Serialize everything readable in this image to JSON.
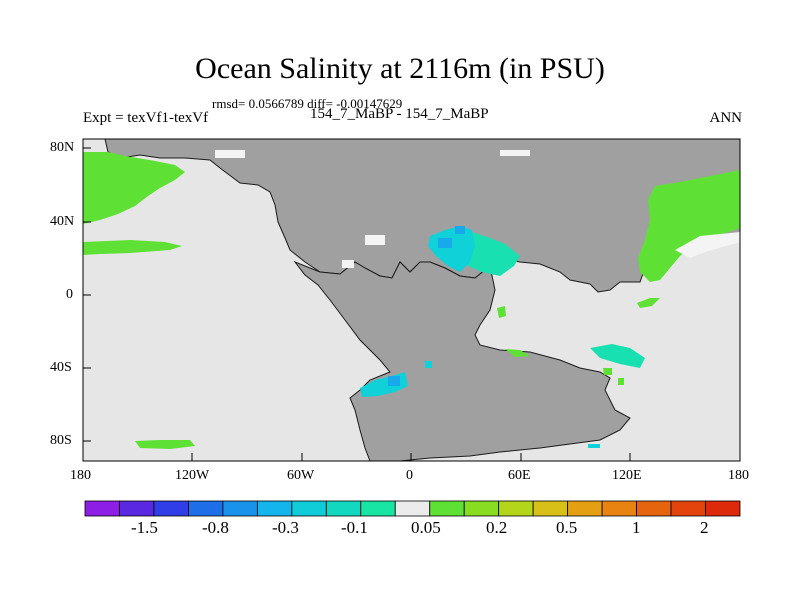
{
  "title": "Ocean Salinity at 2116m (in PSU)",
  "stats": "rmsd= 0.0566789 diff= -0.00147629",
  "experiment": "Expt = texVf1-texVf",
  "subtitle": "154_7_MaBP - 154_7_MaBP",
  "season": "ANN",
  "map": {
    "projection": "cylindrical-equidistant",
    "lon_range": [
      -180,
      180
    ],
    "lat_range": [
      -90,
      90
    ],
    "x_tick_labels": [
      "180",
      "120W",
      "60W",
      "0",
      "60E",
      "120E",
      "180"
    ],
    "y_tick_labels": [
      "80N",
      "40N",
      "0",
      "40S",
      "80S"
    ],
    "colors": {
      "ocean_near_zero": "#e6e6e6",
      "land": "#a0a0a0",
      "positive_anomaly": "#5fe035",
      "negative_anomaly_cyan": "#10d0d8",
      "negative_anomaly_teal": "#18e0b0",
      "negative_anomaly_blue": "#18a8ec"
    }
  },
  "colorbar": {
    "labels": [
      "-1.5",
      "-0.8",
      "-0.3",
      "-0.1",
      "0.05",
      "0.2",
      "0.5",
      "1",
      "2"
    ],
    "colors": [
      "#8c1ee6",
      "#5a28e0",
      "#2f3ee6",
      "#1e6ee8",
      "#1892ea",
      "#14b4ec",
      "#0fccd8",
      "#12d8c0",
      "#18e4a4",
      "#ececec",
      "#5fe035",
      "#88dc22",
      "#b4d61a",
      "#d8c018",
      "#e4a012",
      "#e88210",
      "#e6640e",
      "#e2440c",
      "#dc2a0a"
    ]
  }
}
